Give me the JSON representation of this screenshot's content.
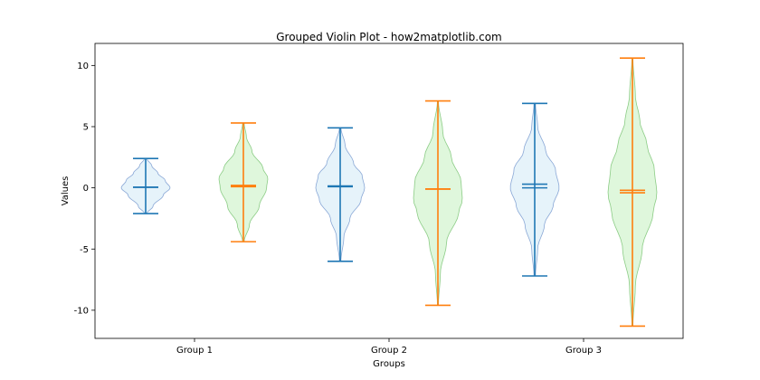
{
  "chart_data": {
    "type": "violin",
    "title": "Grouped Violin Plot - how2matplotlib.com",
    "xlabel": "Groups",
    "ylabel": "Values",
    "categories": [
      "Group 1",
      "Group 2",
      "Group 3"
    ],
    "ylim": [
      -12.3,
      11.8
    ],
    "yticks": [
      10,
      5,
      0,
      -5,
      -10
    ],
    "grid": false,
    "series": [
      {
        "fill": "#e6f3fa",
        "edge": "#8aa8d6",
        "line": "#1f77b4",
        "violins": [
          {
            "min": -2.1,
            "max": 2.4,
            "mean": 0.05,
            "median": 0.05,
            "profile": [
              [
                -2.1,
                0.05
              ],
              [
                -1.5,
                0.3
              ],
              [
                -0.6,
                0.72
              ],
              [
                0.0,
                1.0
              ],
              [
                0.6,
                0.8
              ],
              [
                1.2,
                0.5
              ],
              [
                1.8,
                0.25
              ],
              [
                2.4,
                0.05
              ]
            ]
          },
          {
            "min": -6.0,
            "max": 4.9,
            "mean": 0.1,
            "median": 0.15,
            "profile": [
              [
                -6.0,
                0.03
              ],
              [
                -4.0,
                0.15
              ],
              [
                -2.5,
                0.4
              ],
              [
                -1.0,
                0.85
              ],
              [
                0.0,
                1.0
              ],
              [
                1.0,
                0.9
              ],
              [
                2.0,
                0.55
              ],
              [
                3.5,
                0.2
              ],
              [
                4.9,
                0.03
              ]
            ]
          },
          {
            "min": -7.2,
            "max": 6.9,
            "mean": 0.3,
            "median": 0.0,
            "profile": [
              [
                -7.2,
                0.03
              ],
              [
                -5.0,
                0.12
              ],
              [
                -3.0,
                0.4
              ],
              [
                -1.5,
                0.75
              ],
              [
                0.0,
                1.0
              ],
              [
                1.5,
                0.85
              ],
              [
                3.0,
                0.45
              ],
              [
                5.0,
                0.12
              ],
              [
                6.9,
                0.03
              ]
            ]
          }
        ]
      },
      {
        "fill": "#dff7dc",
        "edge": "#8ccc86",
        "line": "#ff7f0e",
        "violins": [
          {
            "min": -4.4,
            "max": 5.3,
            "mean": 0.2,
            "median": 0.1,
            "profile": [
              [
                -4.4,
                0.03
              ],
              [
                -3.0,
                0.25
              ],
              [
                -1.5,
                0.65
              ],
              [
                0.0,
                0.95
              ],
              [
                0.8,
                1.0
              ],
              [
                1.6,
                0.8
              ],
              [
                3.0,
                0.35
              ],
              [
                4.2,
                0.12
              ],
              [
                5.3,
                0.03
              ]
            ]
          },
          {
            "min": -9.6,
            "max": 7.1,
            "mean": -0.1,
            "median": -0.1,
            "profile": [
              [
                -9.6,
                0.02
              ],
              [
                -7.0,
                0.1
              ],
              [
                -4.5,
                0.35
              ],
              [
                -2.0,
                0.85
              ],
              [
                -1.0,
                1.0
              ],
              [
                0.5,
                0.95
              ],
              [
                2.5,
                0.55
              ],
              [
                4.5,
                0.2
              ],
              [
                7.1,
                0.02
              ]
            ]
          },
          {
            "min": -11.3,
            "max": 10.6,
            "mean": -0.4,
            "median": -0.2,
            "profile": [
              [
                -11.3,
                0.02
              ],
              [
                -8.0,
                0.12
              ],
              [
                -5.0,
                0.4
              ],
              [
                -2.0,
                0.85
              ],
              [
                -0.5,
                1.0
              ],
              [
                1.5,
                0.9
              ],
              [
                3.5,
                0.6
              ],
              [
                5.5,
                0.3
              ],
              [
                7.5,
                0.12
              ],
              [
                10.6,
                0.02
              ]
            ]
          }
        ]
      }
    ]
  }
}
